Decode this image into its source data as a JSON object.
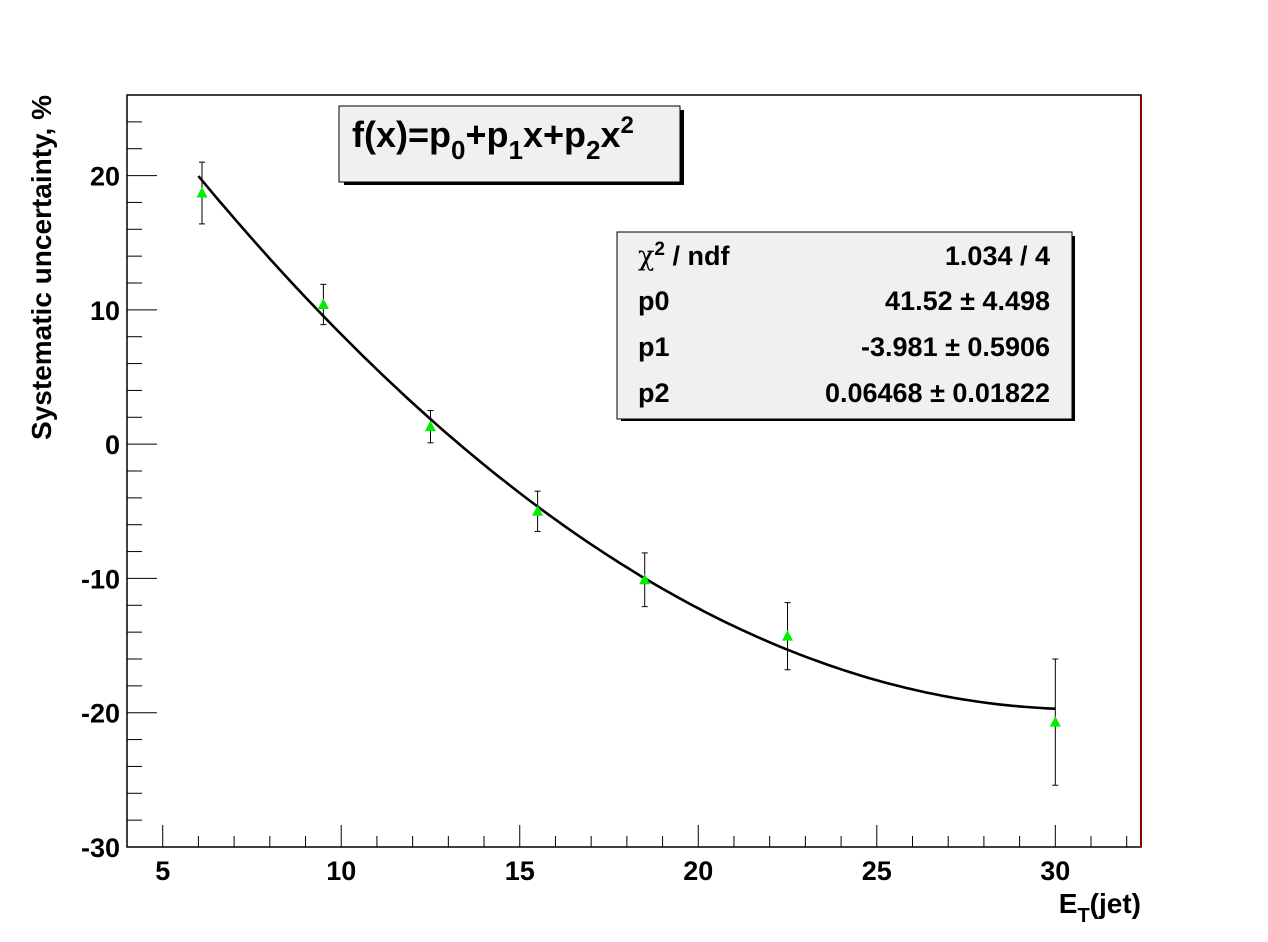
{
  "chart_data": {
    "type": "scatter",
    "xlabel": "E",
    "xlabel_sub": "T",
    "xlabel_suffix": "(jet)",
    "ylabel": "Systematic uncertainty, %",
    "xlim": [
      4,
      32.4
    ],
    "ylim": [
      -30,
      26
    ],
    "x_ticks": [
      5,
      10,
      15,
      20,
      25,
      30
    ],
    "y_ticks": [
      -30,
      -20,
      -10,
      0,
      10,
      20
    ],
    "grid": false,
    "points": [
      {
        "x": 6.1,
        "y": 18.7,
        "err": 2.3
      },
      {
        "x": 9.5,
        "y": 10.4,
        "err": 1.5
      },
      {
        "x": 12.5,
        "y": 1.3,
        "err": 1.2
      },
      {
        "x": 15.5,
        "y": -5.0,
        "err": 1.5
      },
      {
        "x": 18.5,
        "y": -10.1,
        "err": 2.0
      },
      {
        "x": 22.5,
        "y": -14.3,
        "err": 2.5
      },
      {
        "x": 30.0,
        "y": -20.7,
        "err": 4.7
      }
    ],
    "marker_color": "#00ee00",
    "fit": {
      "formula_parts": [
        "f(x)=p",
        "0",
        "+p",
        "1",
        "x+p",
        "2",
        "x",
        "2"
      ],
      "p0": 41.52,
      "p1": -3.981,
      "p2": 0.06468,
      "x_range": [
        6,
        30
      ],
      "line_color": "#000000"
    },
    "stats": {
      "rows": [
        {
          "label": "χ",
          "label_sup": "2",
          "label_rest": " / ndf",
          "value": "1.034 / 4"
        },
        {
          "label": "p0",
          "value": "41.52 ± 4.498"
        },
        {
          "label": "p1",
          "value": "-3.981 ± 0.5906"
        },
        {
          "label": "p2",
          "value": "0.06468 ± 0.01822"
        }
      ]
    },
    "frame_right_color": "#8b0000"
  }
}
